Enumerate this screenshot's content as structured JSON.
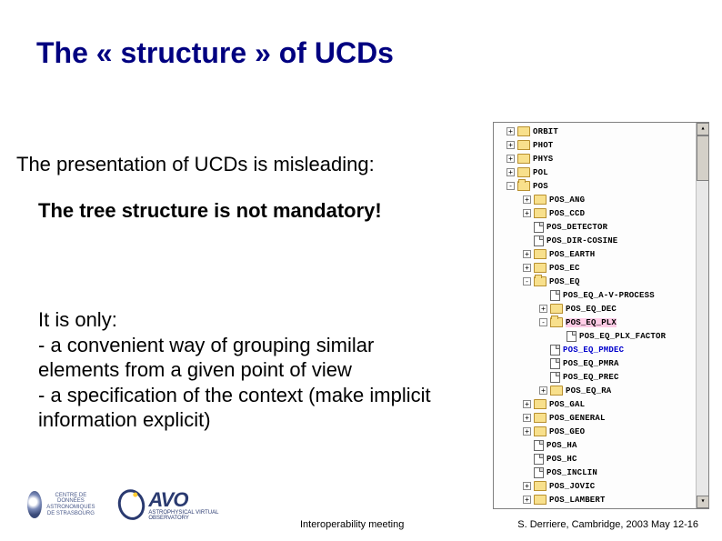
{
  "title": "The « structure » of UCDs",
  "subtitle": "The presentation of UCDs is misleading:",
  "bold_statement": "The tree structure is not mandatory!",
  "body": "It is only:\n- a convenient way of grouping similar elements from a given point of view\n- a specification of the context (make implicit information explicit)",
  "footer_center": "Interoperability meeting",
  "footer_right": "S. Derriere,  Cambridge, 2003 May 12-16",
  "logos": {
    "cds_caption": "CENTRE DE DONNÉES\nASTRONOMIQUES DE STRASBOURG",
    "avo_text": "AVO",
    "avo_sub": "ASTROPHYSICAL VIRTUAL OBSERVATORY"
  },
  "colors": {
    "title_color": "#000080",
    "text_color": "#000000",
    "highlight_pink": "#ffcce6",
    "highlight_blue": "#0000cc",
    "panel_border": "#808080"
  },
  "tree": [
    {
      "depth": 0,
      "expander": "+",
      "icon": "folder",
      "label": "ORBIT"
    },
    {
      "depth": 0,
      "expander": "+",
      "icon": "folder",
      "label": "PHOT"
    },
    {
      "depth": 0,
      "expander": "+",
      "icon": "folder",
      "label": "PHYS"
    },
    {
      "depth": 0,
      "expander": "+",
      "icon": "folder",
      "label": "POL"
    },
    {
      "depth": 0,
      "expander": "-",
      "icon": "folder",
      "label": "POS"
    },
    {
      "depth": 1,
      "expander": "+",
      "icon": "folder",
      "label": "POS_ANG"
    },
    {
      "depth": 1,
      "expander": "+",
      "icon": "folder",
      "label": "POS_CCD"
    },
    {
      "depth": 1,
      "expander": "",
      "icon": "doc",
      "label": "POS_DETECTOR"
    },
    {
      "depth": 1,
      "expander": "",
      "icon": "doc",
      "label": "POS_DIR-COSINE"
    },
    {
      "depth": 1,
      "expander": "+",
      "icon": "folder",
      "label": "POS_EARTH"
    },
    {
      "depth": 1,
      "expander": "+",
      "icon": "folder",
      "label": "POS_EC"
    },
    {
      "depth": 1,
      "expander": "-",
      "icon": "folder",
      "label": "POS_EQ"
    },
    {
      "depth": 2,
      "expander": "",
      "icon": "doc",
      "label": "POS_EQ_A-V-PROCESS"
    },
    {
      "depth": 2,
      "expander": "+",
      "icon": "folder",
      "label": "POS_EQ_DEC"
    },
    {
      "depth": 2,
      "expander": "-",
      "icon": "folder",
      "label": "POS_EQ_PLX",
      "hl": "pink"
    },
    {
      "depth": 3,
      "expander": "",
      "icon": "doc",
      "label": "POS_EQ_PLX_FACTOR"
    },
    {
      "depth": 2,
      "expander": "",
      "icon": "doc",
      "label": "POS_EQ_PMDEC",
      "hl": "blue"
    },
    {
      "depth": 2,
      "expander": "",
      "icon": "doc",
      "label": "POS_EQ_PMRA"
    },
    {
      "depth": 2,
      "expander": "",
      "icon": "doc",
      "label": "POS_EQ_PREC"
    },
    {
      "depth": 2,
      "expander": "+",
      "icon": "folder",
      "label": "POS_EQ_RA"
    },
    {
      "depth": 1,
      "expander": "+",
      "icon": "folder",
      "label": "POS_GAL"
    },
    {
      "depth": 1,
      "expander": "+",
      "icon": "folder",
      "label": "POS_GENERAL"
    },
    {
      "depth": 1,
      "expander": "+",
      "icon": "folder",
      "label": "POS_GEO"
    },
    {
      "depth": 1,
      "expander": "",
      "icon": "doc",
      "label": "POS_HA"
    },
    {
      "depth": 1,
      "expander": "",
      "icon": "doc",
      "label": "POS_HC"
    },
    {
      "depth": 1,
      "expander": "",
      "icon": "doc",
      "label": "POS_INCLIN"
    },
    {
      "depth": 1,
      "expander": "+",
      "icon": "folder",
      "label": "POS_JOVIC"
    },
    {
      "depth": 1,
      "expander": "+",
      "icon": "folder",
      "label": "POS_LAMBERT"
    }
  ]
}
